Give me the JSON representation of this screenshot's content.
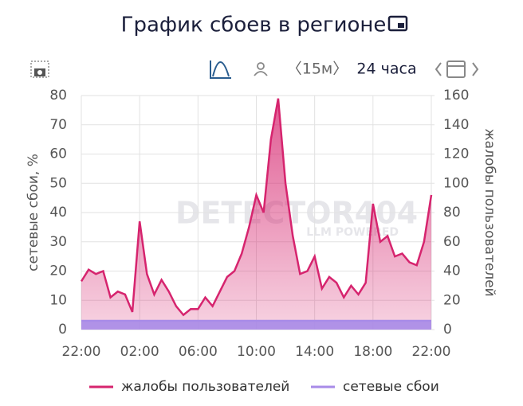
{
  "chart_data": {
    "type": "line",
    "title": "График сбоев в регионе",
    "controls": {
      "interval": "〈15м〉",
      "period": "24 часа"
    },
    "watermark": {
      "main": "DETECTOR404",
      "sub": "LLM POWERED"
    },
    "y_label": "сетевые сбои, %",
    "y2_label": "жалобы пользователей",
    "categories": [
      "22:00",
      null,
      null,
      null,
      null,
      null,
      null,
      null,
      "02:00",
      null,
      null,
      null,
      null,
      null,
      null,
      null,
      "06:00",
      null,
      null,
      null,
      null,
      null,
      null,
      null,
      "10:00",
      null,
      null,
      null,
      null,
      null,
      null,
      null,
      "14:00",
      null,
      null,
      null,
      null,
      null,
      null,
      null,
      "18:00",
      null,
      null,
      null,
      null,
      null,
      null,
      null,
      "22:00"
    ],
    "series": [
      {
        "name": "жалобы пользователей",
        "color": "#d6246e",
        "axis": "y2",
        "values": [
          33,
          41,
          38,
          40,
          22,
          26,
          24,
          12,
          74,
          38,
          24,
          34,
          26,
          16,
          10,
          14,
          14,
          22,
          16,
          26,
          36,
          40,
          52,
          70,
          92,
          80,
          130,
          158,
          100,
          64,
          38,
          40,
          50,
          28,
          36,
          32,
          22,
          30,
          24,
          32,
          86,
          60,
          64,
          50,
          52,
          46,
          44,
          60,
          92
        ]
      },
      {
        "name": "сетевые сбои",
        "color": "#a88be8",
        "axis": "y",
        "values": [
          3,
          3,
          3,
          3,
          3,
          3,
          3,
          3,
          3,
          3,
          3,
          3,
          3,
          3,
          3,
          3,
          3,
          3,
          3,
          3,
          3,
          3,
          3,
          3,
          3,
          3,
          3,
          3,
          3,
          3,
          3,
          3,
          3,
          3,
          3,
          3,
          3,
          3,
          3,
          3,
          3,
          3,
          3,
          3,
          3,
          3,
          3,
          3,
          3
        ]
      }
    ],
    "ylim": [
      0,
      80
    ],
    "yticks": [
      0,
      10,
      20,
      30,
      40,
      50,
      60,
      70,
      80
    ],
    "y2lim": [
      0,
      160
    ],
    "y2ticks": [
      0,
      20,
      40,
      60,
      80,
      100,
      120,
      140,
      160
    ],
    "grid": true
  }
}
